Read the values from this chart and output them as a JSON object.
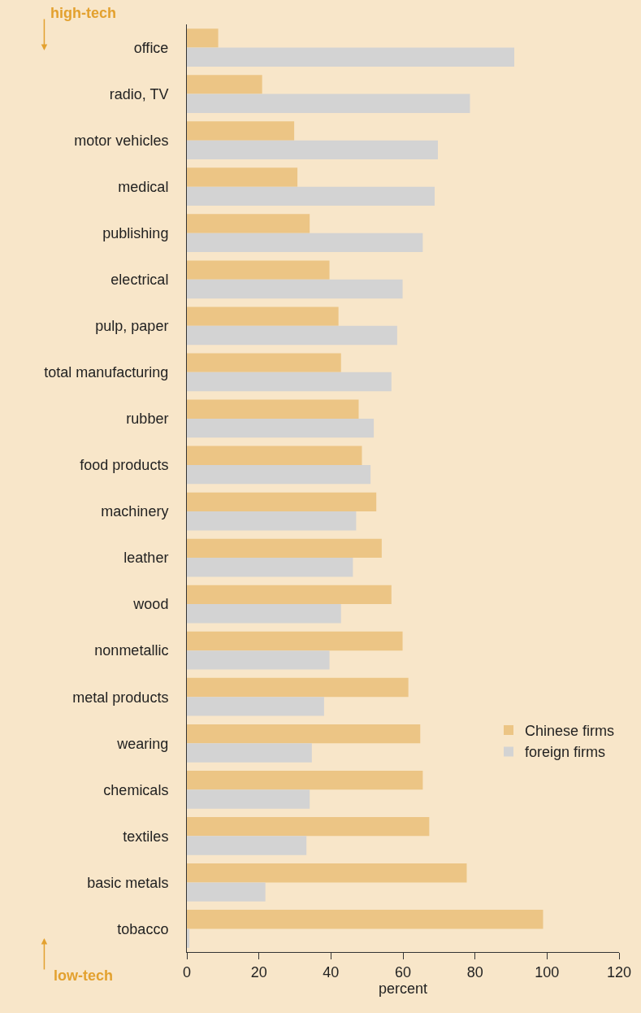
{
  "chart_data": {
    "type": "bar",
    "orientation": "horizontal",
    "categories": [
      "office",
      "radio, TV",
      "motor vehicles",
      "medical",
      "publishing",
      "electrical",
      "pulp, paper",
      "total manufacturing",
      "rubber",
      "food products",
      "machinery",
      "leather",
      "wood",
      "nonmetallic",
      "metal products",
      "wearing",
      "chemicals",
      "textiles",
      "basic metals",
      "tobacco"
    ],
    "series": [
      {
        "name": "Chinese firms",
        "color": "#ecc585",
        "values": [
          8.7,
          20.9,
          29.8,
          30.7,
          34.1,
          39.6,
          42.1,
          42.8,
          47.7,
          48.6,
          52.6,
          54.1,
          56.8,
          59.9,
          61.5,
          64.8,
          65.5,
          67.3,
          77.7,
          98.9
        ]
      },
      {
        "name": "foreign firms",
        "color": "#d3d3d3",
        "values": [
          90.9,
          78.6,
          69.7,
          68.8,
          65.5,
          59.9,
          58.4,
          56.8,
          51.9,
          51.0,
          47.0,
          46.1,
          42.8,
          39.6,
          38.1,
          34.7,
          34.1,
          33.2,
          21.8,
          0.7
        ]
      }
    ],
    "xlabel": "percent",
    "xlim": [
      0,
      120
    ],
    "xticks": [
      0,
      20,
      40,
      60,
      80,
      100,
      120
    ],
    "annotations": [
      "high-tech",
      "low-tech"
    ],
    "grid": false,
    "legend": "bottom right"
  }
}
